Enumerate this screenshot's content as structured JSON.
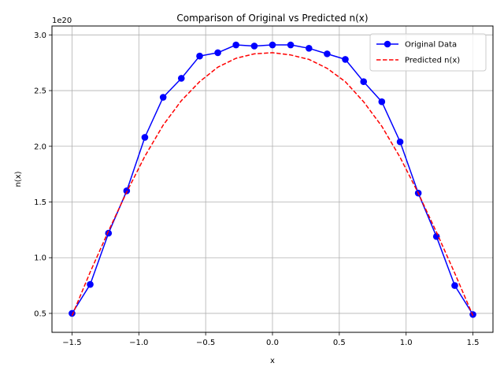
{
  "chart_data": {
    "type": "line",
    "title": "Comparison of Original vs Predicted n(x)",
    "xlabel": "x",
    "ylabel": "n(x)",
    "y_scale_label": "1e20",
    "xlim": [
      -1.65,
      1.65
    ],
    "ylim": [
      0.33,
      3.08
    ],
    "x_ticks": [
      -1.5,
      -1.0,
      -0.5,
      0.0,
      0.5,
      1.0,
      1.5
    ],
    "x_tick_labels": [
      "−1.5",
      "−1.0",
      "−0.5",
      "0.0",
      "0.5",
      "1.0",
      "1.5"
    ],
    "y_ticks": [
      0.5,
      1.0,
      1.5,
      2.0,
      2.5,
      3.0
    ],
    "y_tick_labels": [
      "0.5",
      "1.0",
      "1.5",
      "2.0",
      "2.5",
      "3.0"
    ],
    "grid": true,
    "legend_position": "top-right",
    "series": [
      {
        "name": "Original Data",
        "color": "#0000ff",
        "style": "solid-with-circle-markers",
        "x": [
          -1.5,
          -1.364,
          -1.227,
          -1.091,
          -0.955,
          -0.818,
          -0.682,
          -0.545,
          -0.409,
          -0.273,
          -0.136,
          0.0,
          0.136,
          0.273,
          0.409,
          0.545,
          0.682,
          0.818,
          0.955,
          1.091,
          1.227,
          1.364,
          1.5
        ],
        "y": [
          0.5,
          0.76,
          1.22,
          1.6,
          2.08,
          2.44,
          2.61,
          2.81,
          2.84,
          2.91,
          2.9,
          2.91,
          2.91,
          2.88,
          2.83,
          2.78,
          2.58,
          2.4,
          2.04,
          1.58,
          1.19,
          0.75,
          0.49
        ]
      },
      {
        "name": "Predicted n(x)",
        "color": "#ff0000",
        "style": "dashed",
        "x": [
          -1.5,
          -1.364,
          -1.227,
          -1.091,
          -0.955,
          -0.818,
          -0.682,
          -0.545,
          -0.409,
          -0.273,
          -0.136,
          0.0,
          0.136,
          0.273,
          0.409,
          0.545,
          0.682,
          0.818,
          0.955,
          1.091,
          1.227,
          1.364,
          1.5
        ],
        "y": [
          0.48,
          0.87,
          1.24,
          1.59,
          1.91,
          2.19,
          2.41,
          2.58,
          2.71,
          2.79,
          2.83,
          2.84,
          2.82,
          2.78,
          2.7,
          2.58,
          2.4,
          2.18,
          1.9,
          1.58,
          1.23,
          0.86,
          0.48
        ]
      }
    ]
  }
}
